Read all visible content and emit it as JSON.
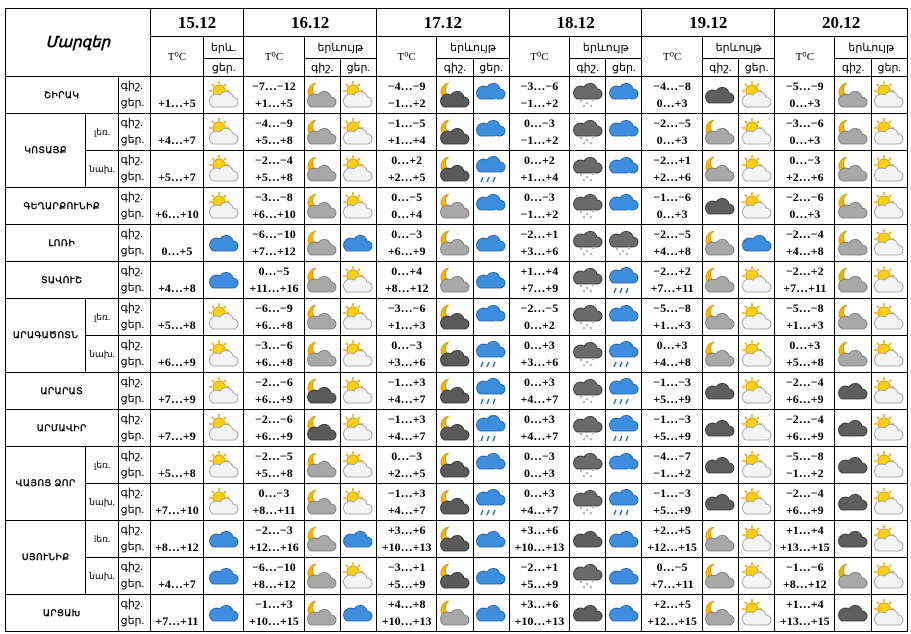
{
  "header": {
    "title": "Մարզեր",
    "dates": [
      "15.12",
      "16.12",
      "17.12",
      "18.12",
      "19.12",
      "20.12"
    ],
    "temp": "T⁰C",
    "phen_short": "երև.",
    "phen": "երևույթ",
    "night": "գիշ.",
    "day": "ցեր."
  },
  "regions": [
    {
      "name": "ՇԻՐԱԿ",
      "rows": [
        {
          "night": [
            "−7…−12",
            "−4…−9",
            "−3…−6",
            "−4…−8",
            "−5…−9"
          ],
          "day": [
            "+1…+5",
            "+1…+5",
            "−1…+2",
            "−1…+2",
            "0…+3",
            "0…+3"
          ]
        }
      ]
    },
    {
      "name": "ԿՈՏԱՅՔ",
      "rows": [
        {
          "sub": "լեռ.",
          "night": [
            "−4…−9",
            "−1…−5",
            "0…−3",
            "−2…−5",
            "−3…−6"
          ],
          "day": [
            "+4…+7",
            "+5…+8",
            "+1…+4",
            "−1…+2",
            "0…+3",
            "0…+3"
          ]
        },
        {
          "sub": "նախ.",
          "night": [
            "−2…−4",
            "0…+2",
            "0…+2",
            "−2…+1",
            "0…−3"
          ],
          "day": [
            "+5…+7",
            "+5…+8",
            "+2…+5",
            "+1…+4",
            "+2…+6",
            "+2…+6"
          ]
        }
      ]
    },
    {
      "name": "ԳԵՂԱՐՔՈՒՆԻՔ",
      "rows": [
        {
          "night": [
            "−3…−8",
            "0…−5",
            "0…−3",
            "−1…−6",
            "−2…−6"
          ],
          "day": [
            "+6…+10",
            "+6…+10",
            "0…+4",
            "−1…+2",
            "0…+3",
            "0…+3"
          ]
        }
      ]
    },
    {
      "name": "ԼՈՌԻ",
      "rows": [
        {
          "night": [
            "−6…−10",
            "0…−3",
            "−2…+1",
            "−2…−5",
            "−2…−4"
          ],
          "day": [
            "0…+5",
            "+7…+12",
            "+6…+9",
            "+3…+6",
            "+4…+8",
            "+4…+8"
          ]
        }
      ]
    },
    {
      "name": "ՏԱՎՈՒՇ",
      "rows": [
        {
          "night": [
            "0…−5",
            "0…+4",
            "+1…+4",
            "−2…+2",
            "−2…+2"
          ],
          "day": [
            "+4…+8",
            "+11…+16",
            "+8…+12",
            "+7…+9",
            "+7…+11",
            "+7…+11"
          ]
        }
      ]
    },
    {
      "name": "ԱՐԱԳԱԾՈՏՆ",
      "rows": [
        {
          "sub": "լեռ.",
          "night": [
            "−6…−9",
            "−3…−6",
            "−2…−5",
            "−5…−8",
            "−5…−8"
          ],
          "day": [
            "+5…+8",
            "+6…+8",
            "+1…+3",
            "0…+2",
            "+1…+3",
            "+1…+3"
          ]
        },
        {
          "sub": "նախ.",
          "night": [
            "−3…−6",
            "0…−3",
            "0…+3",
            "0…+3",
            "0…+3"
          ],
          "day": [
            "+6…+9",
            "+6…+8",
            "+3…+6",
            "+3…+6",
            "+4…+8",
            "+5…+8"
          ]
        }
      ]
    },
    {
      "name": "ԱՐԱՐԱՏ",
      "rows": [
        {
          "night": [
            "−2…−6",
            "−1…+3",
            "0…+3",
            "−1…−3",
            "−2…−4"
          ],
          "day": [
            "+7…+9",
            "+6…+9",
            "+4…+7",
            "+4…+7",
            "+5…+9",
            "+6…+9"
          ]
        }
      ]
    },
    {
      "name": "ԱՐՄԱՎԻՐ",
      "rows": [
        {
          "night": [
            "−2…−6",
            "−1…+3",
            "0…+3",
            "−1…−3",
            "−2…−4"
          ],
          "day": [
            "+7…+9",
            "+6…+9",
            "+4…+7",
            "+4…+7",
            "+5…+9",
            "+6…+9"
          ]
        }
      ]
    },
    {
      "name": "ՎԱՅՈՑ ՁՈՐ",
      "rows": [
        {
          "sub": "լեռ.",
          "night": [
            "−2…−5",
            "0…−3",
            "0…−3",
            "−4…−7",
            "−5…−8"
          ],
          "day": [
            "+5…+8",
            "+5…+8",
            "+2…+5",
            "0…+3",
            "−1…+2",
            "−1…+2"
          ]
        },
        {
          "sub": "նախ.",
          "night": [
            "0…−3",
            "−1…+3",
            "0…+3",
            "−1…−3",
            "−2…−4"
          ],
          "day": [
            "+7…+10",
            "+8…+11",
            "+4…+7",
            "+4…+7",
            "+5…+9",
            "+6…+9"
          ]
        }
      ]
    },
    {
      "name": "ՍՅՈՒՆԻՔ",
      "rows": [
        {
          "sub": "lեռ.",
          "night": [
            "−2…−3",
            "+3…+6",
            "+3…+6",
            "+2…+5",
            "+1…+4"
          ],
          "day": [
            "+8…+12",
            "+12…+16",
            "+10…+13",
            "+10…+13",
            "+12…+15",
            "+13…+15"
          ]
        },
        {
          "sub": "նախ.",
          "night": [
            "−6…−10",
            "−3…+1",
            "−2…+1",
            "0…−5",
            "−1…−6"
          ],
          "day": [
            "+4…+7",
            "+8…+12",
            "+5…+9",
            "+5…+9",
            "+7…+11",
            "+8…+12"
          ]
        }
      ]
    },
    {
      "name": "ԱՐՑԱԽ",
      "rows": [
        {
          "night": [
            "−1…+3",
            "+4…+8",
            "+3…+6",
            "+2…+5",
            "+1…+4"
          ],
          "day": [
            "+7…+11",
            "+10…+15",
            "+10…+13",
            "+10…+13",
            "+12…+15",
            "+13…+15"
          ]
        }
      ]
    }
  ]
}
